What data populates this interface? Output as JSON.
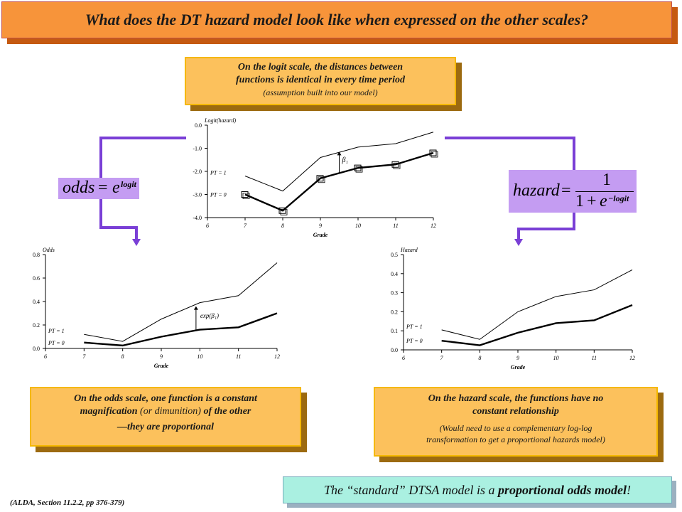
{
  "title": "What does the DT hazard model look like when expressed on the other scales?",
  "callouts": {
    "logit": {
      "line1": "On the logit scale, the distances between",
      "line2": "functions is identical in every time period",
      "line3": "(assumption built into our model)"
    },
    "odds": {
      "line1": "On the odds scale, one function is a constant",
      "line2_bold": "magnification",
      "line2_mid": " (or dimunition) ",
      "line2_end": "of the other",
      "line3": "—they are proportional"
    },
    "hazard": {
      "line1": "On the hazard scale, the functions have no",
      "line2": "constant relationship",
      "line3": "(Would need to use a complementary log-log",
      "line4": "transformation to get a proportional hazards model)"
    }
  },
  "formulas": {
    "odds": {
      "lhs": "odds",
      "eq": "=",
      "base": "e",
      "exp": "logit"
    },
    "hazard": {
      "lhs": "hazard",
      "eq": "=",
      "num": "1",
      "den_one": "1",
      "den_plus": "+",
      "den_base": "e",
      "den_exp": "−logit"
    }
  },
  "bottom_box": {
    "pre": "The “standard” DTSA model is a ",
    "bold": "proportional odds model",
    "post": "!"
  },
  "citation": "(ALDA, Section 11.2.2, pp 376-379)",
  "chart_data": [
    {
      "type": "line",
      "ylabel": "Logit(hazard)",
      "xlabel": "Grade",
      "x": [
        7,
        8,
        9,
        10,
        11,
        12
      ],
      "xticks": [
        "6",
        "7",
        "8",
        "9",
        "10",
        "11",
        "12"
      ],
      "yticks": [
        "0.0",
        "-1.0",
        "-2.0",
        "-3.0",
        "-4.0"
      ],
      "xlim": [
        6,
        12
      ],
      "ylim": [
        -4.0,
        0.0
      ],
      "series": [
        {
          "name": "PT = 1",
          "values": [
            -2.2,
            -2.85,
            -1.4,
            -0.95,
            -0.8,
            -0.3
          ]
        },
        {
          "name": "PT = 0",
          "values": [
            -3.0,
            -3.7,
            -2.3,
            -1.85,
            -1.7,
            -1.2
          ]
        }
      ],
      "points_pt0": [
        -3.0,
        -3.7,
        -2.3,
        -1.85,
        -1.7,
        -1.2
      ],
      "annotation": "β₁"
    },
    {
      "type": "line",
      "ylabel": "Odds",
      "xlabel": "Grade",
      "x": [
        7,
        8,
        9,
        10,
        11,
        12
      ],
      "xticks": [
        "6",
        "7",
        "8",
        "9",
        "10",
        "11",
        "12"
      ],
      "yticks": [
        "0.8",
        "0.6",
        "0.4",
        "0.2",
        "0.0"
      ],
      "xlim": [
        6,
        12
      ],
      "ylim": [
        0.0,
        0.8
      ],
      "series": [
        {
          "name": "PT = 1",
          "values": [
            0.12,
            0.06,
            0.25,
            0.39,
            0.45,
            0.73
          ]
        },
        {
          "name": "PT = 0",
          "values": [
            0.05,
            0.025,
            0.1,
            0.16,
            0.18,
            0.3
          ]
        }
      ],
      "annotation": "exp(β₁)"
    },
    {
      "type": "line",
      "ylabel": "Hazard",
      "xlabel": "Grade",
      "x": [
        7,
        8,
        9,
        10,
        11,
        12
      ],
      "xticks": [
        "6",
        "7",
        "8",
        "9",
        "10",
        "11",
        "12"
      ],
      "yticks": [
        "0.5",
        "0.4",
        "0.3",
        "0.2",
        "0.1",
        "0.0"
      ],
      "xlim": [
        6,
        12
      ],
      "ylim": [
        0.0,
        0.5
      ],
      "series": [
        {
          "name": "PT = 1",
          "values": [
            0.105,
            0.055,
            0.2,
            0.28,
            0.315,
            0.42
          ]
        },
        {
          "name": "PT = 0",
          "values": [
            0.048,
            0.024,
            0.09,
            0.14,
            0.155,
            0.235
          ]
        }
      ]
    }
  ],
  "colors": {
    "title_bg": "#f7943a",
    "callout_bg": "#fcc15c",
    "formula_bg": "#c49cf2",
    "arrow": "#7a3fd6",
    "teal": "#aaf0e1"
  }
}
